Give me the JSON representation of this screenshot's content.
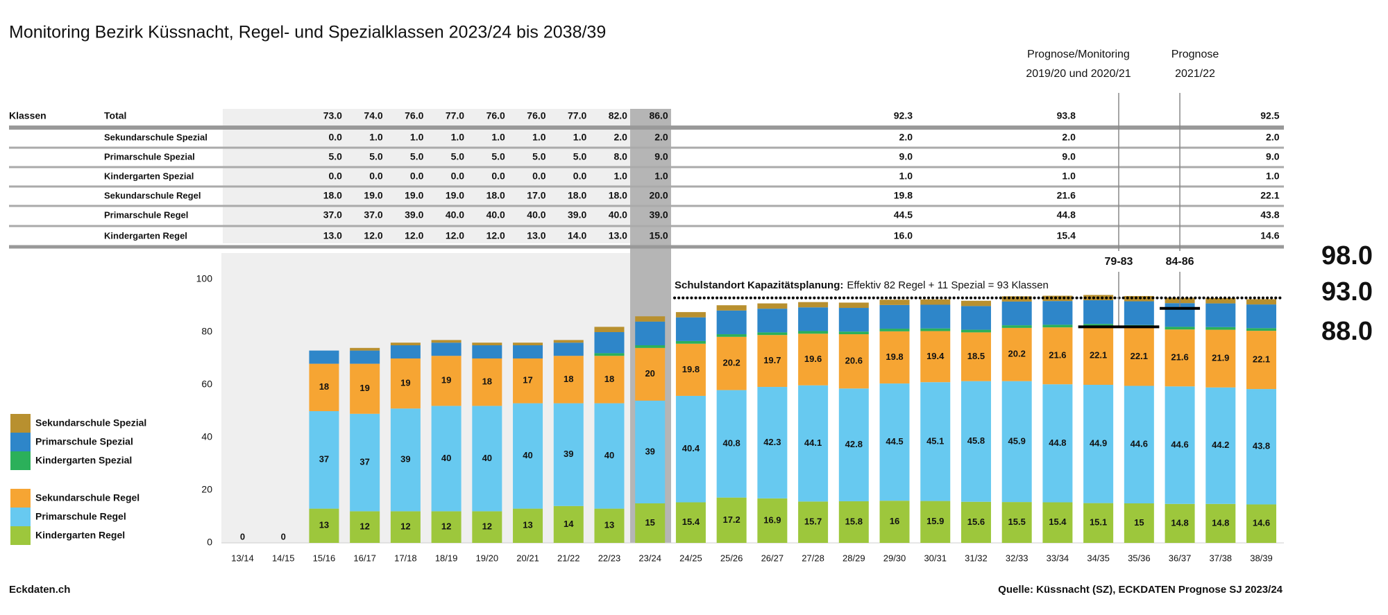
{
  "chart_data": {
    "type": "stacked_bar",
    "title": "Monitoring Bezirk Küssnacht, Regel- und Spezialklassen 2023/24 bis 2038/39",
    "categories": [
      "13/14",
      "14/15",
      "15/16",
      "16/17",
      "17/18",
      "18/19",
      "19/20",
      "20/21",
      "21/22",
      "22/23",
      "23/24",
      "24/25",
      "25/26",
      "26/27",
      "27/28",
      "28/29",
      "29/30",
      "30/31",
      "31/32",
      "32/33",
      "33/34",
      "34/35",
      "35/36",
      "36/37",
      "37/38",
      "38/39"
    ],
    "series": [
      {
        "name": "Kindergarten Regel",
        "color": "#9dc73c",
        "labeled": true,
        "values": [
          0,
          0,
          13,
          12,
          12,
          12,
          12,
          13,
          14,
          13,
          15,
          15.4,
          17.2,
          16.9,
          15.7,
          15.8,
          16,
          15.9,
          15.6,
          15.5,
          15.4,
          15.1,
          15,
          14.8,
          14.8,
          14.6
        ]
      },
      {
        "name": "Primarschule Regel",
        "color": "#67c9f0",
        "labeled": true,
        "values": [
          0,
          0,
          37,
          37,
          39,
          40,
          40,
          40,
          39,
          40,
          39,
          40.4,
          40.8,
          42.3,
          44.1,
          42.8,
          44.5,
          45.1,
          45.8,
          45.9,
          44.8,
          44.9,
          44.6,
          44.6,
          44.2,
          43.8
        ]
      },
      {
        "name": "Sekundarschule Regel",
        "color": "#f6a533",
        "labeled": true,
        "values": [
          0,
          0,
          18,
          19,
          19,
          19,
          18,
          17,
          18,
          18,
          20,
          19.8,
          20.2,
          19.7,
          19.6,
          20.6,
          19.8,
          19.4,
          18.5,
          20.2,
          21.6,
          22.1,
          22.1,
          21.6,
          21.9,
          22.1
        ]
      },
      {
        "name": "Kindergarten Spezial",
        "color": "#2bb05a",
        "labeled": false,
        "values": [
          0,
          0,
          0,
          0,
          0,
          0,
          0,
          0,
          0,
          1,
          1,
          1,
          1,
          1,
          1,
          1,
          1,
          1,
          1,
          1,
          1,
          1,
          1,
          1,
          1,
          1
        ]
      },
      {
        "name": "Primarschule Spezial",
        "color": "#2e86c9",
        "labeled": false,
        "values": [
          0,
          0,
          5,
          5,
          5,
          5,
          5,
          5,
          5,
          8,
          9,
          9,
          9,
          9,
          9,
          9,
          9,
          9,
          9,
          9,
          9,
          9,
          9,
          9,
          9,
          9
        ]
      },
      {
        "name": "Sekundarschule Spezial",
        "color": "#b8902f",
        "labeled": false,
        "values": [
          0,
          0,
          0,
          1,
          1,
          1,
          1,
          1,
          1,
          2,
          2,
          2,
          2,
          2,
          2,
          2,
          2,
          2,
          2,
          2,
          2,
          2,
          2,
          2,
          2,
          2
        ]
      }
    ],
    "ylim": [
      0,
      110
    ],
    "yticks": [
      0,
      20,
      40,
      60,
      80,
      100
    ],
    "capacity": {
      "value": 93,
      "label": "93.0"
    },
    "capacity_range": [
      {
        "label": "98.0",
        "color": "#e0262b"
      },
      {
        "label": "88.0",
        "color": "#2aa33a"
      }
    ],
    "capacity_note": {
      "bold": "Schulstandort Kapazitätsplanung:",
      "text": "Effektiv 82 Regel + 11 Spezial = 93 Klassen"
    },
    "markers": [
      {
        "label": "79-83",
        "value": 82
      },
      {
        "label": "84-86",
        "value": 89
      }
    ],
    "period_headers": [
      {
        "lines": [
          "Prognose/Monitoring",
          "2019/20 und 2020/21"
        ]
      },
      {
        "lines": [
          "Prognose",
          "2021/22"
        ]
      }
    ],
    "source_left": "Eckdaten.ch",
    "source_right": "Quelle: Küssnacht (SZ), ECKDATEN Prognose SJ 2023/24"
  },
  "table": {
    "corner": "Klassen",
    "rows": [
      {
        "label": "Total",
        "cells": [
          "73.0",
          "74.0",
          "76.0",
          "77.0",
          "76.0",
          "76.0",
          "77.0",
          "82.0",
          "86.0",
          "92.3",
          "93.8",
          "92.5"
        ]
      },
      {
        "label": "Sekundarschule Spezial",
        "cells": [
          "0.0",
          "1.0",
          "1.0",
          "1.0",
          "1.0",
          "1.0",
          "1.0",
          "2.0",
          "2.0",
          "2.0",
          "2.0",
          "2.0"
        ]
      },
      {
        "label": "Primarschule Spezial",
        "cells": [
          "5.0",
          "5.0",
          "5.0",
          "5.0",
          "5.0",
          "5.0",
          "5.0",
          "8.0",
          "9.0",
          "9.0",
          "9.0",
          "9.0"
        ]
      },
      {
        "label": "Kindergarten Spezial",
        "cells": [
          "0.0",
          "0.0",
          "0.0",
          "0.0",
          "0.0",
          "0.0",
          "0.0",
          "1.0",
          "1.0",
          "1.0",
          "1.0",
          "1.0"
        ]
      },
      {
        "label": "Sekundarschule Regel",
        "cells": [
          "18.0",
          "19.0",
          "19.0",
          "19.0",
          "18.0",
          "17.0",
          "18.0",
          "18.0",
          "20.0",
          "19.8",
          "21.6",
          "22.1"
        ]
      },
      {
        "label": "Primarschule Regel",
        "cells": [
          "37.0",
          "37.0",
          "39.0",
          "40.0",
          "40.0",
          "40.0",
          "39.0",
          "40.0",
          "39.0",
          "44.5",
          "44.8",
          "43.8"
        ]
      },
      {
        "label": "Kindergarten Regel",
        "cells": [
          "13.0",
          "12.0",
          "12.0",
          "12.0",
          "12.0",
          "13.0",
          "14.0",
          "13.0",
          "15.0",
          "16.0",
          "15.4",
          "14.6"
        ]
      }
    ]
  }
}
